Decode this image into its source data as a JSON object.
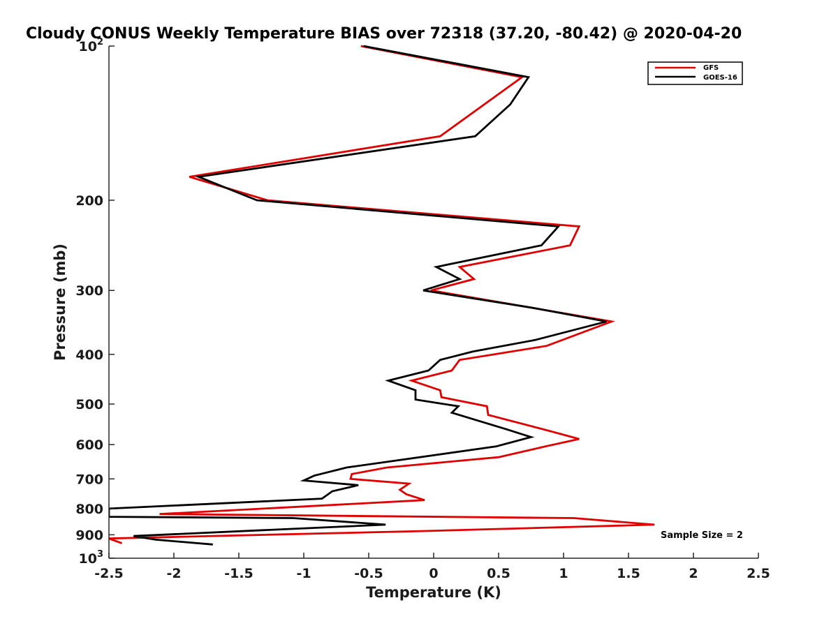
{
  "chart_data": {
    "type": "line",
    "title": "Cloudy CONUS Weekly Temperature BIAS over 72318 (37.20, -80.42) @ 2020-04-20",
    "xlabel": "Temperature (K)",
    "ylabel": "Pressure (mb)",
    "xlim": [
      -2.5,
      2.5
    ],
    "ylim": [
      100,
      1000
    ],
    "y_scale": "log",
    "y_reversed": true,
    "grid": false,
    "legend_position": "top-right",
    "x_ticks": [
      "-2.5",
      "-2",
      "-1.5",
      "-1",
      "-0.5",
      "0",
      "0.5",
      "1",
      "1.5",
      "2",
      "2.5"
    ],
    "y_ticks": [
      {
        "value": 100,
        "base": "10",
        "exp": "2"
      },
      {
        "value": 200,
        "label": "200"
      },
      {
        "value": 300,
        "label": "300"
      },
      {
        "value": 400,
        "label": "400"
      },
      {
        "value": 500,
        "label": "500"
      },
      {
        "value": 600,
        "label": "600"
      },
      {
        "value": 700,
        "label": "700"
      },
      {
        "value": 800,
        "label": "800"
      },
      {
        "value": 900,
        "label": "900"
      },
      {
        "value": 1000,
        "base": "10",
        "exp": "3"
      }
    ],
    "series": [
      {
        "name": "GFS",
        "color": "#e00000",
        "points": [
          [
            -0.56,
            100
          ],
          [
            0.68,
            115
          ],
          [
            0.05,
            150
          ],
          [
            -1.88,
            180
          ],
          [
            -1.28,
            200
          ],
          [
            1.12,
            225
          ],
          [
            1.05,
            245
          ],
          [
            0.2,
            270
          ],
          [
            0.31,
            285
          ],
          [
            -0.02,
            300
          ],
          [
            1.37,
            345
          ],
          [
            0.87,
            385
          ],
          [
            0.2,
            410
          ],
          [
            0.14,
            430
          ],
          [
            -0.17,
            450
          ],
          [
            0.05,
            470
          ],
          [
            0.06,
            485
          ],
          [
            0.41,
            505
          ],
          [
            0.42,
            525
          ],
          [
            0.9,
            565
          ],
          [
            1.12,
            585
          ],
          [
            0.86,
            605
          ],
          [
            0.5,
            635
          ],
          [
            -0.36,
            665
          ],
          [
            -0.63,
            685
          ],
          [
            -0.64,
            700
          ],
          [
            -0.19,
            715
          ],
          [
            -0.26,
            735
          ],
          [
            -0.21,
            750
          ],
          [
            -0.07,
            770
          ],
          [
            -2.11,
            820
          ],
          [
            1.08,
            835
          ],
          [
            1.7,
            860
          ],
          [
            -0.09,
            885
          ],
          [
            -2.5,
            915
          ],
          [
            -2.4,
            935
          ]
        ]
      },
      {
        "name": "GOES-16",
        "color": "#000000",
        "points": [
          [
            -0.54,
            100
          ],
          [
            0.73,
            115
          ],
          [
            0.59,
            130
          ],
          [
            0.32,
            150
          ],
          [
            -1.81,
            180
          ],
          [
            -1.36,
            200
          ],
          [
            0.96,
            225
          ],
          [
            0.83,
            245
          ],
          [
            0.02,
            270
          ],
          [
            0.2,
            285
          ],
          [
            -0.08,
            300
          ],
          [
            0.78,
            325
          ],
          [
            1.33,
            345
          ],
          [
            0.78,
            375
          ],
          [
            0.3,
            395
          ],
          [
            0.05,
            410
          ],
          [
            -0.04,
            430
          ],
          [
            -0.35,
            450
          ],
          [
            -0.14,
            470
          ],
          [
            -0.14,
            490
          ],
          [
            0.19,
            505
          ],
          [
            0.14,
            520
          ],
          [
            0.56,
            560
          ],
          [
            0.75,
            580
          ],
          [
            0.48,
            605
          ],
          [
            -0.67,
            665
          ],
          [
            -0.92,
            690
          ],
          [
            -1.0,
            705
          ],
          [
            -0.58,
            720
          ],
          [
            -0.78,
            740
          ],
          [
            -0.86,
            765
          ],
          [
            -2.5,
            800
          ],
          [
            -2.5,
            830
          ],
          [
            -1.08,
            835
          ],
          [
            -0.37,
            860
          ],
          [
            -2.31,
            905
          ],
          [
            -2.14,
            920
          ],
          [
            -1.7,
            940
          ]
        ]
      }
    ],
    "annotation": "Sample Size = 2"
  },
  "colors": {
    "background": "#ffffff",
    "axis": "#262626",
    "gfs": "#e00000",
    "goes16": "#000000"
  }
}
